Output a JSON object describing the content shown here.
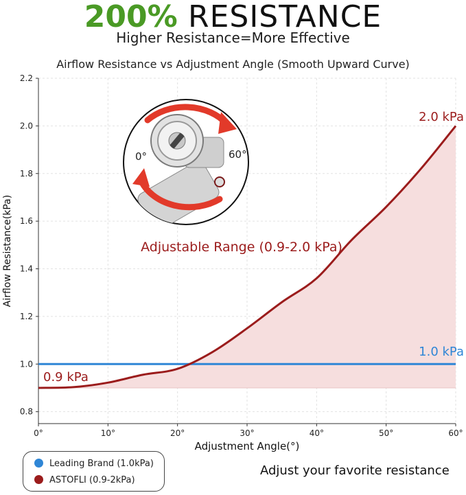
{
  "header": {
    "headline_percent": "200%",
    "headline_word": "RESISTANCE",
    "subtitle": "Higher Resistance=More Effective"
  },
  "colors": {
    "headline_green": "#4a9a25",
    "astofli_red": "#9b1c1c",
    "leading_blue": "#2f86d6",
    "fill_pink": "#f6dede"
  },
  "chart_data": {
    "type": "line",
    "title": "Airflow Resistance vs Adjustment Angle (Smooth Upward Curve)",
    "xlabel": "Adjustment Angle(°)",
    "ylabel": "Airflow Resistance(kPa)",
    "xlim": [
      0,
      60
    ],
    "ylim": [
      0.75,
      2.2
    ],
    "x_ticks": [
      "0°",
      "10°",
      "20°",
      "30°",
      "40°",
      "50°",
      "60°"
    ],
    "y_ticks": [
      "0.8",
      "1.0",
      "1.2",
      "1.4",
      "1.6",
      "1.8",
      "2.0",
      "2.2"
    ],
    "grid": true,
    "x": [
      0,
      5,
      10,
      15,
      20,
      25,
      30,
      35,
      40,
      45,
      50,
      55,
      60
    ],
    "series": [
      {
        "name": "Leading Brand (1.0kPa)",
        "values": [
          1.0,
          1.0,
          1.0,
          1.0,
          1.0,
          1.0,
          1.0,
          1.0,
          1.0,
          1.0,
          1.0,
          1.0,
          1.0
        ]
      },
      {
        "name": "ASTOFLI (0.9-2kPa)",
        "values": [
          0.9,
          0.903,
          0.922,
          0.955,
          0.98,
          1.05,
          1.15,
          1.26,
          1.36,
          1.52,
          1.66,
          1.82,
          2.0
        ]
      }
    ],
    "annotations": {
      "start_label": "0.9 kPa",
      "end_label": "2.0 kPa",
      "leading_label": "1.0 kPa",
      "range_label": "Adjustable Range (0.9-2.0 kPa)"
    }
  },
  "inset": {
    "label_0": "0°",
    "label_60": "60°"
  },
  "legend": {
    "leading": "Leading Brand (1.0kPa)",
    "astofli": "ASTOFLI (0.9-2kPa)"
  },
  "tagline": "Adjust your favorite resistance"
}
